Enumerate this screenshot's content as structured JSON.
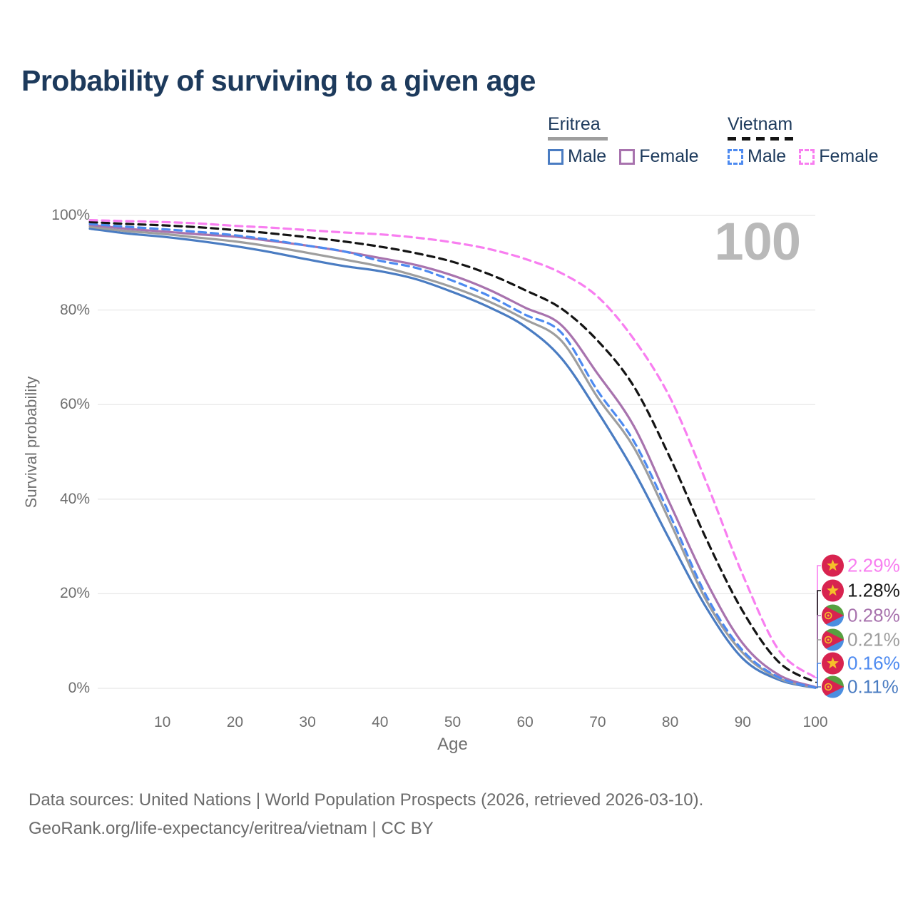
{
  "title": "Probability of surviving to a given age",
  "watermark_age": "100",
  "legend": {
    "groups": [
      {
        "country": "Eritrea",
        "line": {
          "color": "#9e9e9e",
          "dashed": false
        },
        "items": [
          {
            "label": "Male",
            "color": "#4a7cc2",
            "dashed": false
          },
          {
            "label": "Female",
            "color": "#a873ae",
            "dashed": false
          }
        ]
      },
      {
        "country": "Vietnam",
        "line": {
          "color": "#141414",
          "dashed": true
        },
        "items": [
          {
            "label": "Male",
            "color": "#4d8af0",
            "dashed": true
          },
          {
            "label": "Female",
            "color": "#f87ef0",
            "dashed": true
          }
        ]
      }
    ]
  },
  "axes": {
    "y": {
      "label": "Survival probability",
      "tick_values": [
        0,
        20,
        40,
        60,
        80,
        100
      ],
      "tick_labels": [
        "0%",
        "20%",
        "40%",
        "60%",
        "80%",
        "100%"
      ]
    },
    "x": {
      "label": "Age",
      "tick_values": [
        10,
        20,
        30,
        40,
        50,
        60,
        70,
        80,
        90,
        100
      ],
      "range": [
        0,
        100
      ]
    }
  },
  "chart_data": {
    "type": "line",
    "title": "Probability of surviving to a given age",
    "xlabel": "Age",
    "ylabel": "Survival probability",
    "ylim": [
      0,
      100
    ],
    "grid": "horizontal",
    "x": [
      0,
      5,
      10,
      15,
      20,
      25,
      30,
      35,
      40,
      45,
      50,
      55,
      60,
      65,
      70,
      75,
      80,
      85,
      90,
      95,
      100
    ],
    "series": [
      {
        "name": "Eritrea Male",
        "country": "Eritrea",
        "sex": "Male",
        "color": "#4a7cc2",
        "dashed": false,
        "flag": "eritrea",
        "values": [
          97.2,
          96.2,
          95.5,
          94.6,
          93.5,
          92.2,
          90.7,
          89.3,
          88.2,
          86.5,
          83.8,
          80.6,
          76.5,
          69.8,
          58.5,
          45.9,
          31.2,
          17.0,
          6.3,
          1.8,
          0.11
        ],
        "end_label": {
          "text": "0.11%",
          "color": "#4a7cc2"
        }
      },
      {
        "name": "Eritrea Both sexes",
        "country": "Eritrea",
        "sex": "Both",
        "color": "#9e9e9e",
        "dashed": false,
        "flag": "eritrea",
        "values": [
          97.6,
          96.7,
          96.1,
          95.3,
          94.5,
          93.4,
          92.1,
          90.7,
          89.2,
          87.2,
          84.8,
          81.8,
          78.0,
          73.5,
          61.5,
          50.9,
          35.1,
          18.5,
          7.5,
          2.1,
          0.21
        ],
        "end_label": {
          "text": "0.21%",
          "color": "#9e9e9e"
        }
      },
      {
        "name": "Eritrea Female",
        "country": "Eritrea",
        "sex": "Female",
        "color": "#a873ae",
        "dashed": false,
        "flag": "eritrea",
        "values": [
          98.0,
          97.2,
          96.6,
          96.0,
          95.5,
          94.6,
          93.6,
          92.4,
          91.0,
          89.5,
          87.3,
          84.3,
          80.5,
          76.8,
          66.5,
          55.4,
          38.9,
          22.5,
          9.5,
          2.8,
          0.28
        ],
        "end_label": {
          "text": "0.28%",
          "color": "#a873ae"
        }
      },
      {
        "name": "Vietnam Male",
        "country": "Vietnam",
        "sex": "Male",
        "color": "#4d8af0",
        "dashed": true,
        "flag": "vietnam",
        "values": [
          98.2,
          97.6,
          97.1,
          96.5,
          95.8,
          94.8,
          93.6,
          92.4,
          90.4,
          88.9,
          86.2,
          83.0,
          79.0,
          75.2,
          62.9,
          52.2,
          36.5,
          19.5,
          8.0,
          2.3,
          0.16
        ],
        "end_label": {
          "text": "0.16%",
          "color": "#4d8af0"
        }
      },
      {
        "name": "Vietnam Both sexes",
        "country": "Vietnam",
        "sex": "Both",
        "color": "#141414",
        "dashed": true,
        "flag": "vietnam",
        "values": [
          98.6,
          98.2,
          97.9,
          97.5,
          96.9,
          96.2,
          95.4,
          94.5,
          93.4,
          92.0,
          90.2,
          87.6,
          84.2,
          80.3,
          73.5,
          63.8,
          48.7,
          31.5,
          16.3,
          5.5,
          1.28
        ],
        "end_label": {
          "text": "1.28%",
          "color": "#1a1a1a"
        }
      },
      {
        "name": "Vietnam Female",
        "country": "Vietnam",
        "sex": "Female",
        "color": "#f87ef0",
        "dashed": true,
        "flag": "vietnam",
        "values": [
          99.0,
          98.8,
          98.6,
          98.3,
          97.8,
          97.4,
          96.9,
          96.4,
          96.0,
          95.3,
          94.3,
          92.9,
          90.8,
          87.8,
          82.8,
          73.8,
          61.4,
          43.5,
          24.0,
          8.0,
          2.29
        ],
        "end_label": {
          "text": "2.29%",
          "color": "#f87ef0"
        }
      }
    ],
    "end_label_order": [
      "2.29%",
      "1.28%",
      "0.28%",
      "0.21%",
      "0.16%",
      "0.11%"
    ]
  },
  "footer": {
    "line1": "Data sources: United Nations | World Population Prospects (2026, retrieved 2026-03-10).",
    "line2": "GeoRank.org/life-expectancy/eritrea/vietnam | CC BY"
  }
}
